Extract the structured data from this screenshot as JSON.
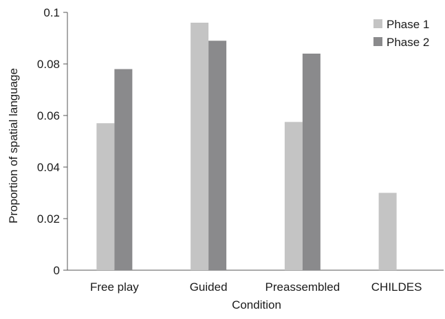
{
  "chart_data": {
    "type": "bar",
    "title": "",
    "xlabel": "Condition",
    "ylabel": "Proportion of spatial language",
    "categories": [
      "Free play",
      "Guided",
      "Preassembled",
      "CHILDES"
    ],
    "series": [
      {
        "name": "Phase 1",
        "color": "#c4c4c4",
        "values": [
          0.057,
          0.096,
          0.0575,
          0.03
        ]
      },
      {
        "name": "Phase 2",
        "color": "#8a8a8c",
        "values": [
          0.078,
          0.089,
          0.084,
          null
        ]
      }
    ],
    "yticks": [
      "0",
      "0.02",
      "0.04",
      "0.06",
      "0.08",
      "0.1"
    ],
    "ylim": [
      0,
      0.1
    ],
    "grid": false,
    "legend_position": "top-right"
  }
}
